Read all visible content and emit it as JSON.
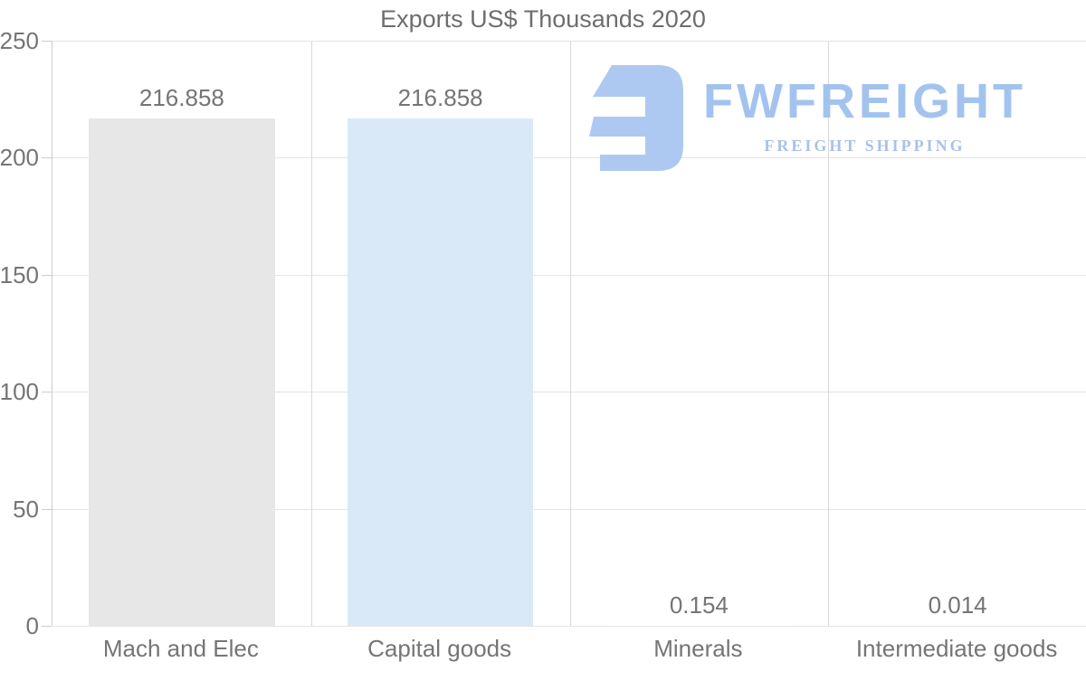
{
  "chart_data": {
    "type": "bar",
    "title": "Exports US$ Thousands 2020",
    "categories": [
      "Mach and Elec",
      "Capital goods",
      "Minerals",
      "Intermediate goods"
    ],
    "values": [
      216.858,
      216.858,
      0.154,
      0.014
    ],
    "value_labels": [
      "216.858",
      "216.858",
      "0.154",
      "0.014"
    ],
    "bar_colors": [
      "#e7e7e7",
      "#d9e9f8",
      "#e7e7e7",
      "#e7e7e7"
    ],
    "xlabel": "",
    "ylabel": "",
    "ylim": [
      0,
      250
    ],
    "yticks": [
      0,
      50,
      100,
      150,
      200,
      250
    ],
    "ytick_labels": [
      "0",
      "50",
      "100",
      "150",
      "200",
      "250"
    ],
    "grid": "horizontal gridlines + vertical category separators",
    "legend": "none"
  },
  "watermark": {
    "brand": "FWFREIGHT",
    "tagline": "FREIGHT SHIPPING",
    "icon_color": "#abc7f1",
    "brand_color": "#a0c1ef",
    "tagline_color": "#a6c0e8"
  },
  "colors": {
    "background": "#ffffff",
    "grid_horizontal": "#e4e4e4",
    "grid_vertical": "#d9d9d9",
    "axis_line": "#cccccc",
    "text": "#757575",
    "title_text": "#6e6e6e",
    "bar_gray": "#e7e7e7",
    "bar_blue": "#d9e9f8"
  }
}
